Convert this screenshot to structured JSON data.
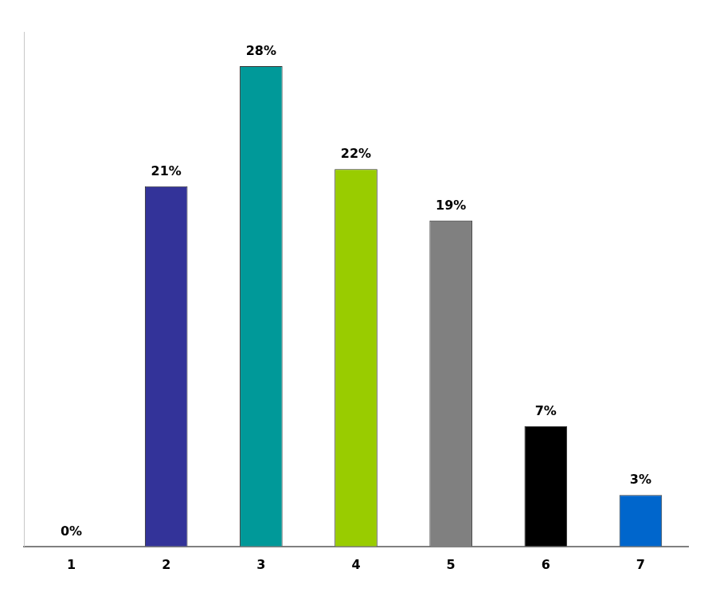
{
  "chart_data": {
    "type": "bar",
    "categories": [
      "1",
      "2",
      "3",
      "4",
      "5",
      "6",
      "7"
    ],
    "values": [
      0,
      21,
      28,
      22,
      19,
      7,
      3
    ],
    "value_labels": [
      "0%",
      "21%",
      "28%",
      "22%",
      "19%",
      "7%",
      "3%"
    ],
    "colors": [
      "#a9c4c4",
      "#333399",
      "#009999",
      "#99cc00",
      "#808080",
      "#000000",
      "#0066cc"
    ],
    "ylim": [
      0,
      30
    ],
    "grid": false,
    "data_labels": true,
    "tick_labels": "x"
  }
}
